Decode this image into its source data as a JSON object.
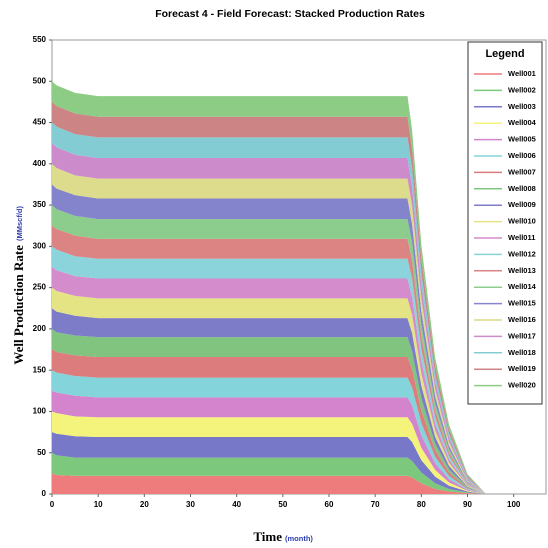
{
  "chart_data": {
    "type": "stacked_area",
    "title": "Forecast 4 - Field Forecast: Stacked Production Rates",
    "xlabel": "Time",
    "xlabel_unit": "(month)",
    "ylabel": "Well Production Rate",
    "ylabel_unit": "(MMscf/d)",
    "legend_title": "Legend",
    "legend_position": "upper right",
    "x": [
      0,
      1,
      5,
      10,
      77,
      78,
      80,
      83,
      86,
      90,
      94,
      107
    ],
    "xlim": [
      0,
      107
    ],
    "xticks": [
      0,
      10,
      20,
      30,
      40,
      50,
      60,
      70,
      80,
      90,
      100
    ],
    "ylim": [
      0,
      550
    ],
    "yticks": [
      0,
      50,
      100,
      150,
      200,
      250,
      300,
      350,
      400,
      450,
      500,
      550
    ],
    "series": [
      {
        "name": "Well001",
        "color": "#ee7c7c",
        "values": [
          25,
          23,
          22,
          22,
          22,
          20,
          13,
          6,
          3,
          1,
          0,
          0
        ]
      },
      {
        "name": "Well002",
        "color": "#7cc87c",
        "values": [
          25,
          24,
          22,
          22,
          22,
          20,
          13,
          7,
          3,
          1,
          0,
          0
        ]
      },
      {
        "name": "Well003",
        "color": "#7878c8",
        "values": [
          25,
          26,
          26,
          25,
          25,
          23,
          15,
          8,
          4,
          1,
          0,
          0
        ]
      },
      {
        "name": "Well004",
        "color": "#f4f47c",
        "values": [
          25,
          25,
          24,
          24,
          24,
          22,
          15,
          8,
          4,
          1,
          0,
          0
        ]
      },
      {
        "name": "Well005",
        "color": "#d484cc",
        "values": [
          25,
          25,
          25,
          24,
          24,
          22,
          15,
          8,
          4,
          1,
          0,
          0
        ]
      },
      {
        "name": "Well006",
        "color": "#84d4dc",
        "values": [
          25,
          24,
          24,
          24,
          24,
          22,
          15,
          8,
          4,
          1,
          0,
          0
        ]
      },
      {
        "name": "Well007",
        "color": "#dc7c7c",
        "values": [
          25,
          25,
          25,
          25,
          25,
          22,
          15,
          8,
          4,
          1,
          0,
          0
        ]
      },
      {
        "name": "Well008",
        "color": "#80c480",
        "values": [
          25,
          24,
          24,
          24,
          24,
          22,
          15,
          8,
          4,
          1,
          0,
          0
        ]
      },
      {
        "name": "Well009",
        "color": "#7c7cc8",
        "values": [
          25,
          25,
          24,
          23,
          23,
          22,
          15,
          8,
          4,
          1,
          0,
          0
        ]
      },
      {
        "name": "Well010",
        "color": "#e4e484",
        "values": [
          25,
          25,
          24,
          24,
          24,
          22,
          15,
          8,
          4,
          1,
          0,
          0
        ]
      },
      {
        "name": "Well011",
        "color": "#d48ccc",
        "values": [
          25,
          25,
          24,
          24,
          24,
          22,
          15,
          8,
          4,
          1,
          0,
          0
        ]
      },
      {
        "name": "Well012",
        "color": "#8cd4dc",
        "values": [
          25,
          25,
          24,
          24,
          24,
          22,
          15,
          8,
          4,
          1,
          0,
          0
        ]
      },
      {
        "name": "Well013",
        "color": "#dc8484",
        "values": [
          25,
          25,
          25,
          24,
          24,
          22,
          15,
          8,
          4,
          1,
          0,
          0
        ]
      },
      {
        "name": "Well014",
        "color": "#8ccc8c",
        "values": [
          25,
          24,
          24,
          24,
          24,
          22,
          15,
          8,
          4,
          1,
          0,
          0
        ]
      },
      {
        "name": "Well015",
        "color": "#8484cc",
        "values": [
          25,
          25,
          25,
          25,
          25,
          22,
          15,
          9,
          4,
          1,
          0,
          0
        ]
      },
      {
        "name": "Well016",
        "color": "#dcdc8c",
        "values": [
          25,
          25,
          24,
          24,
          24,
          22,
          16,
          9,
          5,
          1,
          0,
          0
        ]
      },
      {
        "name": "Well017",
        "color": "#cc8ccc",
        "values": [
          25,
          25,
          25,
          25,
          25,
          23,
          16,
          9,
          5,
          2,
          0,
          0
        ]
      },
      {
        "name": "Well018",
        "color": "#84ccd4",
        "values": [
          25,
          25,
          25,
          25,
          25,
          23,
          16,
          9,
          5,
          2,
          0,
          0
        ]
      },
      {
        "name": "Well019",
        "color": "#cc8484",
        "values": [
          25,
          25,
          25,
          25,
          25,
          23,
          16,
          10,
          5,
          2,
          0,
          0
        ]
      },
      {
        "name": "Well020",
        "color": "#8ccc84",
        "values": [
          25,
          25,
          25,
          25,
          25,
          23,
          17,
          10,
          6,
          2,
          0,
          0
        ]
      }
    ]
  }
}
